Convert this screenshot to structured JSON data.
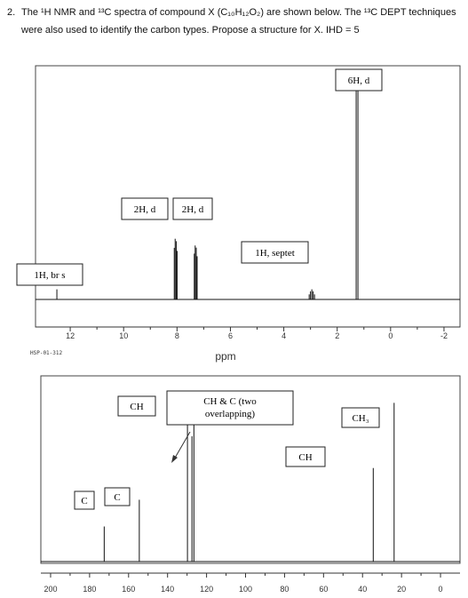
{
  "question": {
    "number": "2.",
    "line1": "The ¹H NMR and ¹³C spectra of compound X (C₁₀H₁₂O₂) are shown below. The ¹³C DEPT techniques",
    "line2": "were also used to identify the carbon types. Propose a structure for X. IHD = 5"
  },
  "chart_data": [
    {
      "type": "line",
      "title": "",
      "xlabel": "ppm",
      "xlim": [
        13.3,
        -2.6
      ],
      "x_ticks": [
        12,
        10,
        8,
        6,
        4,
        2,
        0,
        -2
      ],
      "footer_label": "HSP-01-312",
      "grid": false,
      "peaks": [
        {
          "ppm": 12.5,
          "height": 0.045,
          "label": "1H, br s"
        },
        {
          "ppm": 8.05,
          "height": 0.27,
          "label": "2H, d"
        },
        {
          "ppm": 7.3,
          "height": 0.24,
          "label": "2H, d"
        },
        {
          "ppm": 2.95,
          "height": 0.045,
          "label": "1H, septet"
        },
        {
          "ppm": 1.25,
          "height": 0.97,
          "label": "6H, d"
        }
      ]
    },
    {
      "type": "line",
      "title": "",
      "xlabel": "",
      "xlim": [
        205,
        -10
      ],
      "x_ticks": [
        200,
        180,
        160,
        140,
        120,
        100,
        80,
        60,
        40,
        20,
        0
      ],
      "grid": false,
      "peaks": [
        {
          "ppm": 172.5,
          "height": 0.21,
          "label": "C"
        },
        {
          "ppm": 154.5,
          "height": 0.37,
          "label": "C"
        },
        {
          "ppm": 129.8,
          "height": 0.95,
          "label": "CH"
        },
        {
          "ppm": 127.5,
          "height": 0.75,
          "label": "CH & C (two overlapping)"
        },
        {
          "ppm": 126.5,
          "height": 0.93,
          "label": ""
        },
        {
          "ppm": 34.5,
          "height": 0.56,
          "label": "CH"
        },
        {
          "ppm": 23.8,
          "height": 0.95,
          "label": "CH₃"
        }
      ]
    }
  ]
}
